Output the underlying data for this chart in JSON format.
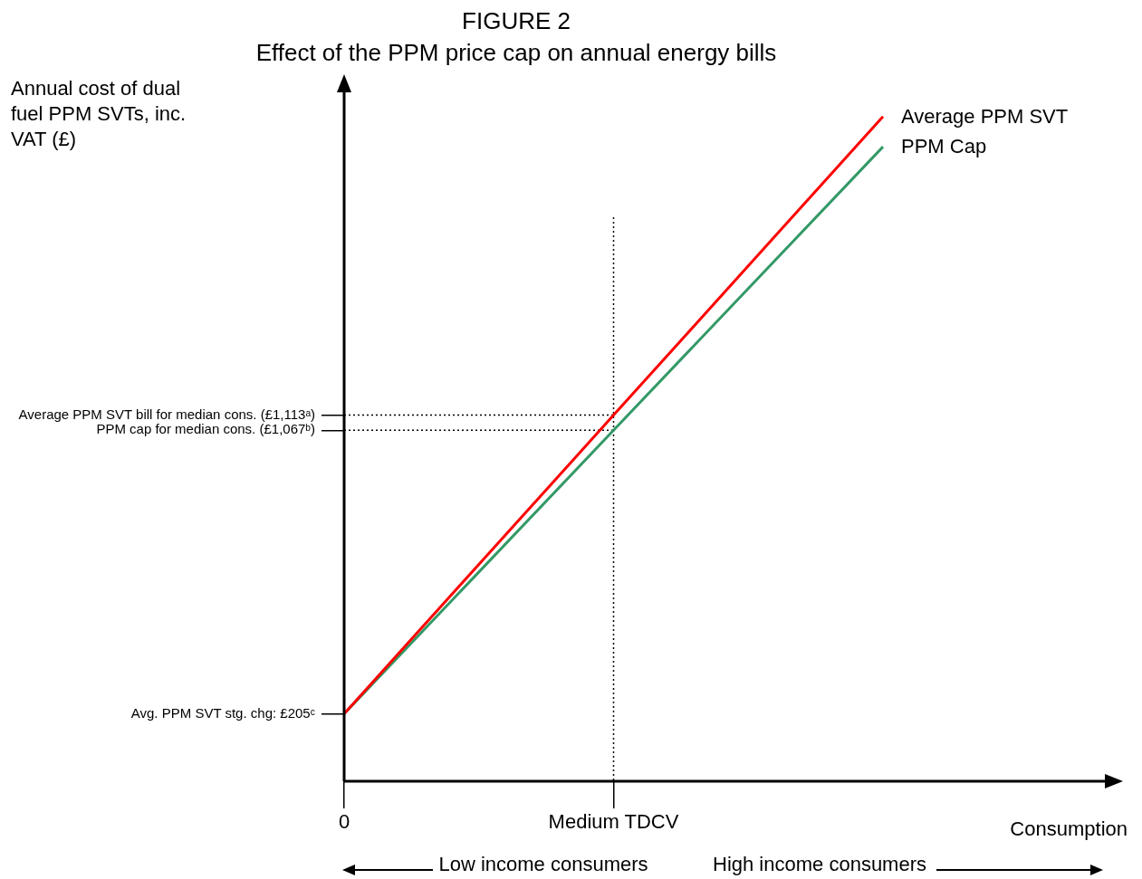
{
  "chart_data": {
    "type": "line",
    "title": "FIGURE 2",
    "subtitle": "Effect of the PPM price cap on annual energy bills",
    "ylabel": "Annual cost of dual fuel PPM SVTs, inc. VAT (£)",
    "xlabel": "Consumption",
    "categories": [
      "0",
      "Medium TDCV",
      null
    ],
    "series": [
      {
        "name": "Average PPM SVT",
        "color": "#ff0000",
        "values": [
          205,
          1113,
          2021
        ]
      },
      {
        "name": "PPM Cap",
        "color": "#339966",
        "values": [
          205,
          1067,
          1929
        ]
      }
    ],
    "ylim": [
      0,
      2100
    ],
    "yticks": [
      {
        "value": 205,
        "label": "Avg. PPM SVT stg. chg: £205ᶜ"
      },
      {
        "value": 1067,
        "label": "PPM cap for median cons. (£1,067ᵇ)"
      },
      {
        "value": 1113,
        "label": "Average PPM SVT bill for median cons. (£1,113ᵃ)"
      }
    ],
    "ref_lines": [
      {
        "axis": "y",
        "value": 1113,
        "line_style": "dotted",
        "color": "#000000"
      },
      {
        "axis": "y",
        "value": 1067,
        "line_style": "dotted",
        "color": "#000000"
      },
      {
        "axis": "x",
        "value": "Medium TDCV",
        "line_style": "dotted",
        "color": "#000000"
      }
    ],
    "annotations": [
      "Low income consumers",
      "High income consumers"
    ],
    "grid": false,
    "legend": false,
    "marker": "none",
    "line_style": "solid"
  }
}
